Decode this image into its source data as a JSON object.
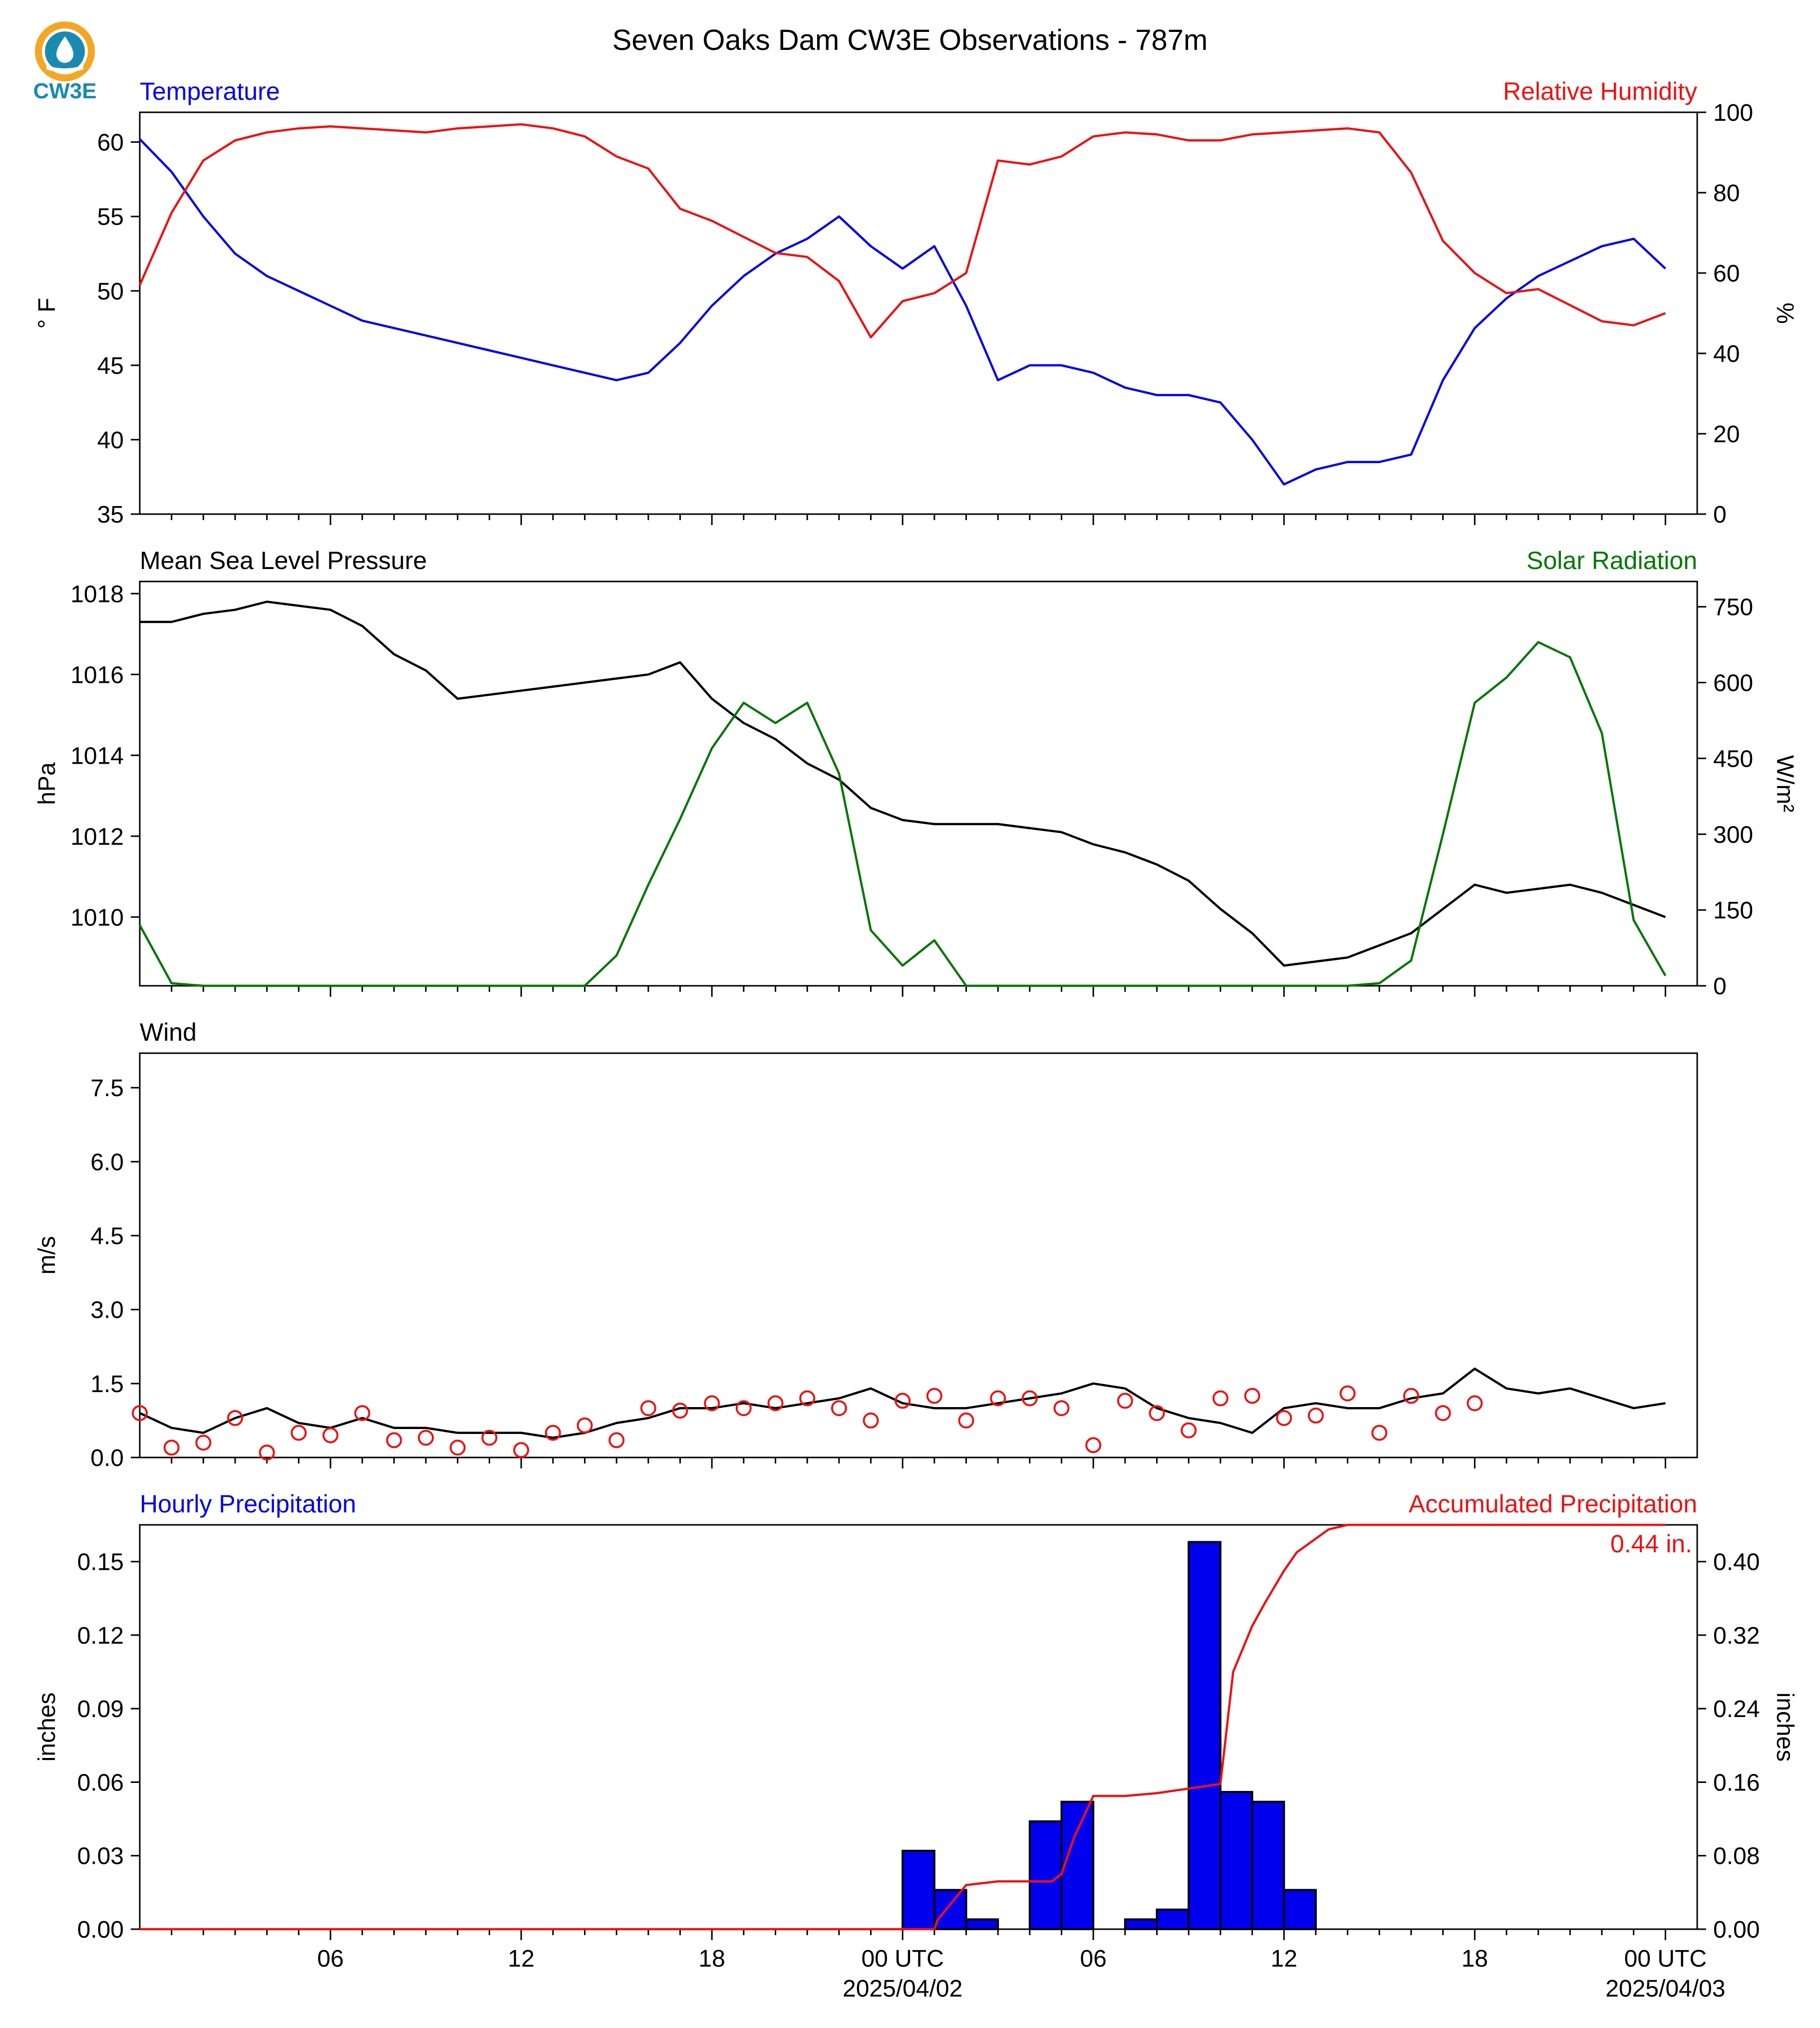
{
  "title": "Seven Oaks Dam CW3E Observations - 787m",
  "logo_text": "CW3E",
  "colors": {
    "blue": "#0000ee",
    "red": "#ee1111",
    "green": "#007700",
    "black": "#000000",
    "logo_orange": "#f5a623",
    "logo_teal": "#1a8ab0"
  },
  "x_axis": {
    "ticks": [
      {
        "hour": 6,
        "label": "06"
      },
      {
        "hour": 12,
        "label": "12"
      },
      {
        "hour": 18,
        "label": "18"
      },
      {
        "hour": 24,
        "label": "00 UTC",
        "date": "2025/04/02"
      },
      {
        "hour": 30,
        "label": "06"
      },
      {
        "hour": 36,
        "label": "12"
      },
      {
        "hour": 42,
        "label": "18"
      },
      {
        "hour": 48,
        "label": "00 UTC",
        "date": "2025/04/03"
      }
    ],
    "range_hours": [
      0,
      49
    ]
  },
  "chart_data": [
    {
      "type": "line",
      "panel": "temperature",
      "left_title": "Temperature",
      "right_title": "Relative Humidity",
      "ylabel_left": "° F",
      "ylabel_right": "%",
      "ylim_left": [
        35,
        62
      ],
      "ylim_right": [
        0,
        100
      ],
      "yticks_left": [
        35,
        40,
        45,
        50,
        55,
        60
      ],
      "yticks_right": [
        0,
        20,
        40,
        60,
        80,
        100
      ],
      "x_hours": [
        0,
        1,
        2,
        3,
        4,
        5,
        6,
        7,
        8,
        9,
        10,
        11,
        12,
        13,
        14,
        15,
        16,
        17,
        18,
        19,
        20,
        21,
        22,
        23,
        24,
        25,
        26,
        27,
        28,
        29,
        30,
        31,
        32,
        33,
        34,
        35,
        36,
        37,
        38,
        39,
        40,
        41,
        42,
        43,
        44,
        45,
        46,
        47,
        48
      ],
      "series": [
        {
          "name": "Temperature",
          "axis": "left",
          "color": "#0000ee",
          "values": [
            60.2,
            58,
            55,
            52.5,
            51,
            50,
            49,
            48,
            47.5,
            47,
            46.5,
            46,
            45.5,
            45,
            44.5,
            44,
            44.5,
            46.5,
            49,
            51,
            52.5,
            53.5,
            55,
            53,
            51.5,
            53,
            49,
            44,
            45,
            45,
            44.5,
            43.5,
            43,
            43,
            42.5,
            40,
            37,
            38,
            38.5,
            38.5,
            39,
            44,
            47.5,
            49.5,
            51,
            52,
            53,
            53.5,
            51.5
          ]
        },
        {
          "name": "Relative Humidity",
          "axis": "right",
          "color": "#ee1111",
          "values": [
            57,
            75,
            88,
            93,
            95,
            96,
            96.5,
            96,
            95.5,
            95,
            96,
            96.5,
            97,
            96,
            94,
            89,
            86,
            76,
            73,
            69,
            65,
            64,
            58,
            44,
            53,
            55,
            60,
            88,
            87,
            89,
            94,
            95,
            94.5,
            93,
            93,
            94.5,
            95,
            95.5,
            96,
            95,
            85,
            68,
            60,
            55,
            56,
            52,
            48,
            47,
            50
          ]
        }
      ]
    },
    {
      "type": "line",
      "panel": "pressure",
      "left_title": "Mean Sea Level Pressure",
      "right_title": "Solar Radiation",
      "ylabel_left": "hPa",
      "ylabel_right": "W/m²",
      "ylim_left": [
        1008.3,
        1018.3
      ],
      "ylim_right": [
        0,
        800
      ],
      "yticks_left": [
        1010,
        1012,
        1014,
        1016,
        1018
      ],
      "yticks_right": [
        0,
        150,
        300,
        450,
        600,
        750
      ],
      "x_hours": [
        0,
        1,
        2,
        3,
        4,
        5,
        6,
        7,
        8,
        9,
        10,
        11,
        12,
        13,
        14,
        15,
        16,
        17,
        18,
        19,
        20,
        21,
        22,
        23,
        24,
        25,
        26,
        27,
        28,
        29,
        30,
        31,
        32,
        33,
        34,
        35,
        36,
        37,
        38,
        39,
        40,
        41,
        42,
        43,
        44,
        45,
        46,
        47,
        48
      ],
      "series": [
        {
          "name": "Mean Sea Level Pressure",
          "axis": "left",
          "color": "#000000",
          "values": [
            1017.3,
            1017.3,
            1017.5,
            1017.6,
            1017.8,
            1017.7,
            1017.6,
            1017.2,
            1016.5,
            1016.1,
            1015.4,
            1015.5,
            1015.6,
            1015.7,
            1015.8,
            1015.9,
            1016.0,
            1016.3,
            1015.4,
            1014.8,
            1014.4,
            1013.8,
            1013.4,
            1012.7,
            1012.4,
            1012.3,
            1012.3,
            1012.3,
            1012.2,
            1012.1,
            1011.8,
            1011.6,
            1011.3,
            1010.9,
            1010.2,
            1009.6,
            1008.8,
            1008.9,
            1009.0,
            1009.3,
            1009.6,
            1010.2,
            1010.8,
            1010.6,
            1010.7,
            1010.8,
            1010.6,
            1010.3,
            1010.0
          ]
        },
        {
          "name": "Solar Radiation",
          "axis": "right",
          "color": "#007700",
          "values": [
            120,
            5,
            0,
            0,
            0,
            0,
            0,
            0,
            0,
            0,
            0,
            0,
            0,
            0,
            0,
            60,
            200,
            330,
            470,
            560,
            520,
            560,
            420,
            110,
            40,
            90,
            0,
            0,
            0,
            0,
            0,
            0,
            0,
            0,
            0,
            0,
            0,
            0,
            0,
            5,
            50,
            300,
            560,
            610,
            680,
            650,
            500,
            130,
            20
          ]
        }
      ]
    },
    {
      "type": "line",
      "panel": "wind",
      "left_title": "Wind",
      "ylabel_left": "m/s",
      "ylim_left": [
        0,
        8.2
      ],
      "yticks_left": [
        0.0,
        1.5,
        3.0,
        4.5,
        6.0,
        7.5
      ],
      "x_hours": [
        0,
        1,
        2,
        3,
        4,
        5,
        6,
        7,
        8,
        9,
        10,
        11,
        12,
        13,
        14,
        15,
        16,
        17,
        18,
        19,
        20,
        21,
        22,
        23,
        24,
        25,
        26,
        27,
        28,
        29,
        30,
        31,
        32,
        33,
        34,
        35,
        36,
        37,
        38,
        39,
        40,
        41,
        42,
        43,
        44,
        45,
        46,
        47,
        48
      ],
      "series": [
        {
          "name": "Wind Speed",
          "color": "#000000",
          "values": [
            0.9,
            0.6,
            0.5,
            0.8,
            1.0,
            0.7,
            0.6,
            0.8,
            0.6,
            0.6,
            0.5,
            0.5,
            0.5,
            0.4,
            0.5,
            0.7,
            0.8,
            1.0,
            1.0,
            1.1,
            1.0,
            1.1,
            1.2,
            1.4,
            1.1,
            1.0,
            1.0,
            1.1,
            1.2,
            1.3,
            1.5,
            1.4,
            1.0,
            0.8,
            0.7,
            0.5,
            1.0,
            1.1,
            1.0,
            1.0,
            1.2,
            1.3,
            1.8,
            1.4,
            1.3,
            1.4,
            1.2,
            1.0,
            1.1
          ]
        },
        {
          "name": "Hourly Wind",
          "color": "#ee1111",
          "values": [
            0.9,
            0.2,
            0.3,
            0.8,
            0.1,
            0.5,
            0.45,
            0.9,
            0.35,
            0.4,
            0.2,
            0.4,
            0.15,
            0.5,
            0.65,
            0.35,
            1.0,
            0.95,
            1.1,
            1.0,
            1.1,
            1.2,
            1.0,
            0.75,
            1.15,
            1.25,
            0.75,
            1.2,
            1.2,
            1.0,
            0.25,
            1.15,
            0.9,
            0.55,
            1.2,
            1.25,
            0.8,
            0.85,
            1.3,
            0.5,
            1.25,
            0.9,
            1.1
          ]
        }
      ],
      "circle_hours": [
        0,
        1,
        2,
        3,
        4,
        5,
        6,
        7,
        8,
        9,
        10,
        11,
        12,
        13,
        14,
        15,
        16,
        17,
        18,
        19,
        20,
        21,
        22,
        23,
        24,
        25,
        26,
        27,
        28,
        29,
        30,
        31,
        32,
        33,
        34,
        35,
        36,
        37,
        38,
        39,
        40,
        41,
        42
      ]
    },
    {
      "type": "bar",
      "panel": "precipitation",
      "left_title": "Hourly Precipitation",
      "right_title": "Accumulated Precipitation",
      "ylabel_left": "inches",
      "ylabel_right": "inches",
      "ylim_left": [
        0,
        0.165
      ],
      "ylim_right": [
        0,
        0.44
      ],
      "yticks_left": [
        0.0,
        0.03,
        0.06,
        0.09,
        0.12,
        0.15
      ],
      "yticks_right": [
        0.0,
        0.08,
        0.16,
        0.24,
        0.32,
        0.4
      ],
      "annotation": "0.44 in.",
      "bars": [
        {
          "hour": 25,
          "value": 0.032
        },
        {
          "hour": 26,
          "value": 0.016
        },
        {
          "hour": 27,
          "value": 0.004
        },
        {
          "hour": 29,
          "value": 0.044
        },
        {
          "hour": 30,
          "value": 0.052
        },
        {
          "hour": 32,
          "value": 0.004
        },
        {
          "hour": 33,
          "value": 0.008
        },
        {
          "hour": 34,
          "value": 0.158
        },
        {
          "hour": 35,
          "value": 0.056
        },
        {
          "hour": 36,
          "value": 0.052
        },
        {
          "hour": 37,
          "value": 0.016
        }
      ],
      "accumulated": {
        "x_hours": [
          0,
          25,
          25.1,
          26,
          27,
          28,
          28.7,
          29,
          29.4,
          30,
          31,
          32,
          33,
          34,
          34.4,
          35,
          35.4,
          36,
          36.4,
          37,
          37.4,
          38,
          39,
          40,
          41,
          42,
          43,
          44,
          45,
          46,
          47,
          48
        ],
        "values": [
          0,
          0,
          0.01,
          0.048,
          0.052,
          0.052,
          0.052,
          0.06,
          0.1,
          0.145,
          0.145,
          0.148,
          0.153,
          0.158,
          0.28,
          0.33,
          0.355,
          0.39,
          0.41,
          0.425,
          0.435,
          0.44,
          0.44,
          0.44,
          0.44,
          0.44,
          0.44,
          0.44,
          0.44,
          0.44,
          0.44,
          0.44
        ]
      }
    }
  ]
}
